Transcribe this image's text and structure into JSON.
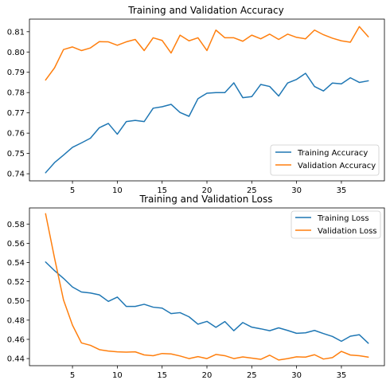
{
  "chart_data": [
    {
      "type": "line",
      "title": "Training and Validation Accuracy",
      "xlabel": "",
      "ylabel": "",
      "xlim": [
        0.2,
        39.8
      ],
      "ylim": [
        0.7365,
        0.8162
      ],
      "xticks": [
        5,
        10,
        15,
        20,
        25,
        30,
        35
      ],
      "yticks": [
        0.74,
        0.75,
        0.76,
        0.77,
        0.78,
        0.79,
        0.8,
        0.81
      ],
      "ytick_labels": [
        "0.74",
        "0.75",
        "0.76",
        "0.77",
        "0.78",
        "0.79",
        "0.80",
        "0.81"
      ],
      "legend_position": "lower-right",
      "x": [
        2,
        3,
        4,
        5,
        6,
        7,
        8,
        9,
        10,
        11,
        12,
        13,
        14,
        15,
        16,
        17,
        18,
        19,
        20,
        21,
        22,
        23,
        24,
        25,
        26,
        27,
        28,
        29,
        30,
        31,
        32,
        33,
        34,
        35,
        36,
        37,
        38
      ],
      "series": [
        {
          "name": "Training Accuracy",
          "color": "#1f77b4",
          "values": [
            0.7405,
            0.7455,
            0.7492,
            0.753,
            0.7552,
            0.7575,
            0.7627,
            0.7648,
            0.7595,
            0.7657,
            0.7663,
            0.7657,
            0.7723,
            0.773,
            0.7742,
            0.7702,
            0.7683,
            0.777,
            0.7797,
            0.78,
            0.78,
            0.7848,
            0.7775,
            0.778,
            0.784,
            0.783,
            0.7783,
            0.7847,
            0.7865,
            0.7895,
            0.783,
            0.7808,
            0.7847,
            0.7843,
            0.7873,
            0.785,
            0.7858
          ]
        },
        {
          "name": "Validation Accuracy",
          "color": "#ff7f0e",
          "values": [
            0.7862,
            0.7922,
            0.8012,
            0.8025,
            0.8007,
            0.802,
            0.8051,
            0.805,
            0.8033,
            0.805,
            0.8062,
            0.8007,
            0.807,
            0.8057,
            0.7995,
            0.8083,
            0.8055,
            0.807,
            0.8007,
            0.8108,
            0.807,
            0.807,
            0.8053,
            0.8083,
            0.8065,
            0.8088,
            0.8062,
            0.8088,
            0.8072,
            0.8065,
            0.8108,
            0.8085,
            0.8068,
            0.8055,
            0.8048,
            0.8125,
            0.8075
          ]
        }
      ]
    },
    {
      "type": "line",
      "title": "Training and Validation Loss",
      "xlabel": "",
      "ylabel": "",
      "xlim": [
        0.2,
        39.8
      ],
      "ylim": [
        0.4326,
        0.5968
      ],
      "xticks": [
        5,
        10,
        15,
        20,
        25,
        30,
        35
      ],
      "yticks": [
        0.44,
        0.46,
        0.48,
        0.5,
        0.52,
        0.54,
        0.56,
        0.58
      ],
      "ytick_labels": [
        "0.44",
        "0.46",
        "0.48",
        "0.50",
        "0.52",
        "0.54",
        "0.56",
        "0.58"
      ],
      "legend_position": "upper-right",
      "x": [
        2,
        3,
        4,
        5,
        6,
        7,
        8,
        9,
        10,
        11,
        12,
        13,
        14,
        15,
        16,
        17,
        18,
        19,
        20,
        21,
        22,
        23,
        24,
        25,
        26,
        27,
        28,
        29,
        30,
        31,
        32,
        33,
        34,
        35,
        36,
        37,
        38
      ],
      "series": [
        {
          "name": "Training Loss",
          "color": "#1f77b4",
          "values": [
            0.5405,
            0.5315,
            0.5235,
            0.5145,
            0.5093,
            0.5083,
            0.5063,
            0.4995,
            0.504,
            0.4943,
            0.4943,
            0.4965,
            0.4935,
            0.4925,
            0.4868,
            0.4878,
            0.4835,
            0.4758,
            0.4787,
            0.4725,
            0.4785,
            0.469,
            0.4775,
            0.4727,
            0.471,
            0.469,
            0.472,
            0.4693,
            0.4663,
            0.4668,
            0.4693,
            0.466,
            0.463,
            0.458,
            0.4633,
            0.4648,
            0.456
          ]
        },
        {
          "name": "Validation Loss",
          "color": "#ff7f0e",
          "values": [
            0.5908,
            0.5445,
            0.501,
            0.4748,
            0.4563,
            0.4538,
            0.4493,
            0.4478,
            0.447,
            0.4467,
            0.447,
            0.4438,
            0.443,
            0.4453,
            0.4448,
            0.4427,
            0.44,
            0.442,
            0.44,
            0.4443,
            0.443,
            0.44,
            0.4417,
            0.4405,
            0.4392,
            0.4435,
            0.4385,
            0.44,
            0.4418,
            0.4415,
            0.444,
            0.4395,
            0.441,
            0.4475,
            0.4437,
            0.443,
            0.4415
          ]
        }
      ]
    }
  ]
}
